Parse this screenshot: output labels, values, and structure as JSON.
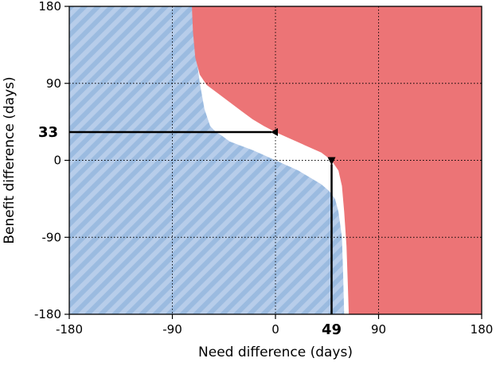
{
  "chart_data": {
    "type": "area",
    "title": "",
    "xlabel": "Need difference (days)",
    "ylabel": "Benefit difference (days)",
    "xlim": [
      -180,
      180
    ],
    "ylim": [
      -180,
      180
    ],
    "xticks": [
      "-180",
      "-90",
      "0",
      "90",
      "180"
    ],
    "yticks": [
      "180",
      "90",
      "0",
      "-90",
      "-180"
    ],
    "grid": true,
    "grid_style": "dotted",
    "regions": {
      "blue_hatched": {
        "color": "#9bbbe0",
        "stripe_color": "#b7cdea",
        "boundary_x": [
          -73,
          -69,
          -66,
          -62,
          -57,
          -52,
          -48,
          -40,
          -30,
          -20,
          -10,
          0,
          10,
          20,
          30,
          40,
          47,
          52,
          55,
          58,
          59,
          60
        ],
        "boundary_y": [
          180,
          120,
          90,
          60,
          40,
          33,
          30,
          22,
          17,
          12,
          6,
          0,
          -6,
          -12,
          -20,
          -28,
          -36,
          -45,
          -60,
          -90,
          -130,
          -180
        ]
      },
      "red": {
        "color": "#ec7476",
        "boundary_x": [
          -73,
          -72,
          -70,
          -66,
          -60,
          -50,
          -40,
          -30,
          -20,
          -10,
          0,
          10,
          20,
          30,
          40,
          45,
          50,
          55,
          58,
          60,
          62,
          63,
          64
        ],
        "boundary_y": [
          180,
          150,
          120,
          100,
          88,
          78,
          68,
          58,
          48,
          40,
          33,
          27,
          21,
          15,
          9,
          4,
          -2,
          -12,
          -30,
          -60,
          -100,
          -140,
          -180
        ]
      }
    },
    "markers": [
      {
        "x": 0,
        "y": 33,
        "label": "33",
        "label_axis": "y"
      },
      {
        "x": 49,
        "y": 0,
        "label": "49",
        "label_axis": "x"
      }
    ]
  }
}
